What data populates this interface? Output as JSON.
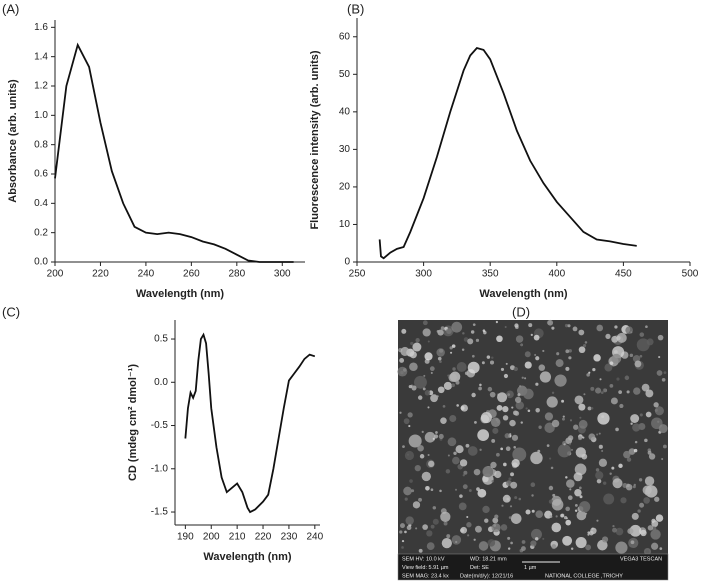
{
  "chart_data": [
    {
      "type": "line",
      "panel_label": "(A)",
      "x_label": "Wavelength (nm)",
      "y_label": "Absorbance (arb. units)",
      "x": [
        200,
        205,
        210,
        215,
        220,
        225,
        230,
        235,
        240,
        245,
        250,
        255,
        260,
        265,
        270,
        275,
        280,
        285,
        290,
        300,
        305
      ],
      "values": [
        0.57,
        1.2,
        1.48,
        1.33,
        0.95,
        0.62,
        0.4,
        0.24,
        0.2,
        0.19,
        0.2,
        0.19,
        0.17,
        0.14,
        0.12,
        0.09,
        0.05,
        0.01,
        0.0,
        0.0,
        0.0
      ],
      "color": "#111111",
      "xlim": [
        200,
        310
      ],
      "ylim": [
        0,
        1.65
      ],
      "xticks": [
        200,
        220,
        240,
        260,
        280,
        300
      ],
      "yticks": [
        {
          "value": 0,
          "label": "0.0"
        },
        0.2,
        0.4,
        0.6,
        0.8,
        {
          "value": 1,
          "label": "1.0"
        },
        1.2,
        1.4,
        1.6
      ]
    },
    {
      "type": "line",
      "panel_label": "(B)",
      "x_label": "Wavelength (nm)",
      "y_label": "Fluorescence intensity (arb. units)",
      "x": [
        267,
        268,
        270,
        275,
        280,
        285,
        290,
        300,
        310,
        320,
        330,
        335,
        340,
        345,
        350,
        360,
        370,
        380,
        390,
        400,
        410,
        420,
        430,
        440,
        450,
        460
      ],
      "values": [
        6,
        1.5,
        1,
        2.5,
        3.5,
        4,
        8,
        17,
        28,
        40,
        51,
        55,
        57,
        56.5,
        54,
        45,
        35,
        27,
        21,
        16,
        12,
        8,
        6,
        5.5,
        4.8,
        4.3
      ],
      "color": "#111111",
      "xlim": [
        250,
        500
      ],
      "ylim": [
        0,
        65
      ],
      "xticks": [
        250,
        300,
        350,
        400,
        450,
        500
      ],
      "yticks": [
        0,
        10,
        20,
        30,
        40,
        50,
        60
      ]
    },
    {
      "type": "line",
      "panel_label": "(C)",
      "x_label": "Wavelength (nm)",
      "y_label": "CD (mdeg cm² dmol⁻¹)",
      "x": [
        190,
        191,
        192,
        193,
        194,
        195,
        196,
        197,
        198,
        199,
        200,
        202,
        204,
        206,
        208,
        210,
        212,
        214,
        215,
        217,
        220,
        222,
        224,
        226,
        228,
        230,
        232,
        234,
        236,
        238,
        240
      ],
      "values": [
        -0.65,
        -0.3,
        -0.12,
        -0.18,
        -0.1,
        0.25,
        0.5,
        0.55,
        0.45,
        0.1,
        -0.3,
        -0.75,
        -1.1,
        -1.27,
        -1.22,
        -1.17,
        -1.27,
        -1.45,
        -1.5,
        -1.47,
        -1.38,
        -1.3,
        -1.0,
        -0.65,
        -0.3,
        0.02,
        0.1,
        0.18,
        0.27,
        0.32,
        0.3
      ],
      "color": "#111111",
      "xlim": [
        186,
        242
      ],
      "ylim": [
        -1.65,
        0.72
      ],
      "xticks": [
        190,
        200,
        210,
        220,
        230,
        240
      ],
      "yticks": [
        0.5,
        {
          "value": 0,
          "label": "0.0"
        },
        -0.5,
        {
          "value": -1,
          "label": "-1.0"
        },
        -1.5
      ]
    }
  ],
  "image_panel": {
    "panel_label": "(D)",
    "info": [
      "SEM HV: 10.0 kV",
      "WD: 18.21 mm",
      "VEGA3 TESCAN",
      "View field: 5.91 µm",
      "Det: SE",
      "1 µm",
      "SEM MAG: 23.4 kx",
      "Date(m/d/y): 12/21/16",
      "NATIONAL COLLEGE ,TRICHY"
    ]
  }
}
